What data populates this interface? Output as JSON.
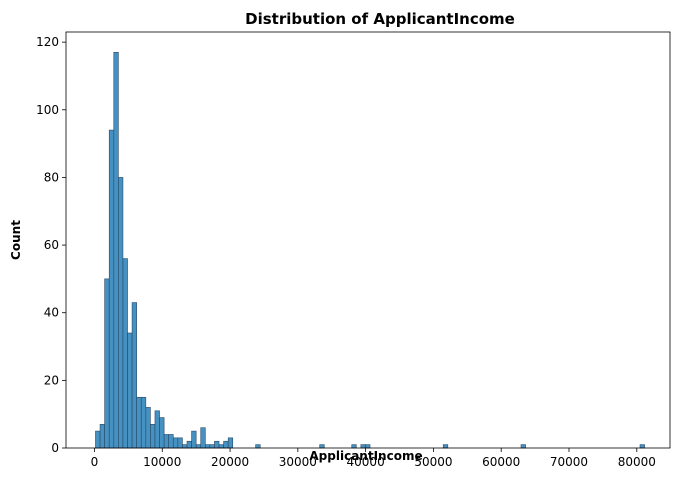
{
  "chart_data": {
    "type": "bar",
    "title": "Distribution of ApplicantIncome",
    "xlabel": "ApplicantIncome",
    "ylabel": "Count",
    "xlim": [
      -4200,
      84900
    ],
    "ylim": [
      0,
      123
    ],
    "xticks": [
      0,
      10000,
      20000,
      30000,
      40000,
      50000,
      60000,
      70000,
      80000
    ],
    "xtick_labels": [
      "0",
      "10000",
      "20000",
      "30000",
      "40000",
      "50000",
      "60000",
      "70000",
      "80000"
    ],
    "yticks": [
      0,
      20,
      40,
      60,
      80,
      100,
      120
    ],
    "ytick_labels": [
      "0",
      "20",
      "40",
      "60",
      "80",
      "100",
      "120"
    ],
    "bin_start": 150,
    "bin_width": 675,
    "counts": [
      5,
      7,
      50,
      94,
      117,
      80,
      56,
      34,
      43,
      15,
      15,
      12,
      7,
      11,
      9,
      4,
      4,
      3,
      3,
      1,
      2,
      5,
      1,
      6,
      1,
      1,
      2,
      1,
      2,
      3,
      0,
      0,
      0,
      0,
      0,
      1,
      0,
      0,
      0,
      0,
      0,
      0,
      0,
      0,
      0,
      0,
      0,
      0,
      0,
      1,
      0,
      0,
      0,
      0,
      0,
      0,
      1,
      0,
      1,
      1,
      0,
      0,
      0,
      0,
      0,
      0,
      0,
      0,
      0,
      0,
      0,
      0,
      0,
      0,
      0,
      0,
      1,
      0,
      0,
      0,
      0,
      0,
      0,
      0,
      0,
      0,
      0,
      0,
      0,
      0,
      0,
      0,
      0,
      1,
      0,
      0,
      0,
      0,
      0,
      0,
      0,
      0,
      0,
      0,
      0,
      0,
      0,
      0,
      0,
      0,
      0,
      0,
      0,
      0,
      0,
      0,
      0,
      0,
      0,
      1
    ],
    "grid": false,
    "legend": "none",
    "bar_color": "#3b8bbf",
    "bar_edge_color": "#2a4a66"
  }
}
